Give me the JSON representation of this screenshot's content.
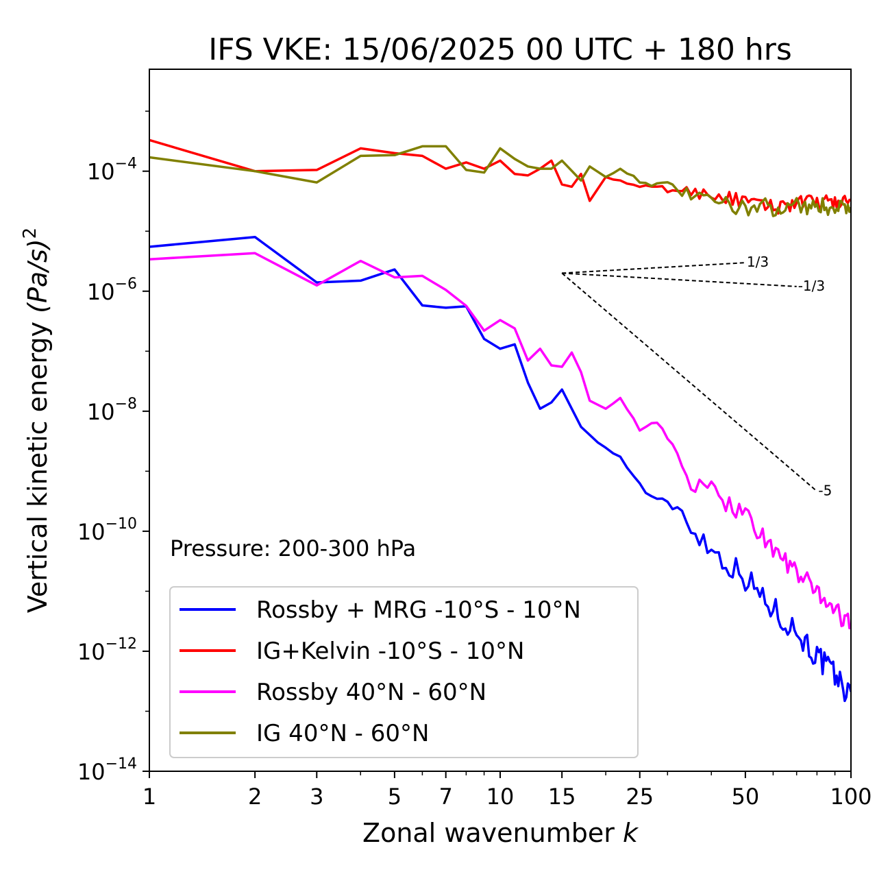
{
  "chart_data": {
    "type": "line",
    "title": "IFS VKE: 15/06/2025 00 UTC + 180 hrs",
    "xlabel": "Zonal wavenumber",
    "xlabel_var": "k",
    "ylabel": "Vertical kinetic energy",
    "ylabel_unit": "(Pa/s)",
    "ylabel_unit_exp": "2",
    "xscale": "log",
    "yscale": "log",
    "xlim": [
      1,
      100
    ],
    "ylim": [
      1e-14,
      0.005
    ],
    "xticks": [
      1,
      2,
      3,
      5,
      7,
      10,
      15,
      25,
      50,
      100
    ],
    "yticks": [
      {
        "value": 1e-14,
        "base": "10",
        "exp": "−14"
      },
      {
        "value": 1e-12,
        "base": "10",
        "exp": "−12"
      },
      {
        "value": 1e-10,
        "base": "10",
        "exp": "−10"
      },
      {
        "value": 1e-08,
        "base": "10",
        "exp": "−8"
      },
      {
        "value": 1e-06,
        "base": "10",
        "exp": "−6"
      },
      {
        "value": 0.0001,
        "base": "10",
        "exp": "−4"
      }
    ],
    "annotation": "Pressure: 200-300 hPa",
    "legend_position": "lower-left",
    "series": [
      {
        "name": "Rossby + MRG -10°S - 10°N",
        "color": "#0000ff",
        "anchors": [
          [
            1,
            5.5e-06
          ],
          [
            2,
            8e-06
          ],
          [
            3,
            1.4e-06
          ],
          [
            4,
            1.5e-06
          ],
          [
            5,
            2.3e-06
          ],
          [
            6,
            5.8e-07
          ],
          [
            7,
            5.3e-07
          ],
          [
            8,
            5.6e-07
          ],
          [
            9,
            1.6e-07
          ],
          [
            10,
            1.1e-07
          ],
          [
            11,
            1.3e-07
          ],
          [
            12,
            3e-08
          ],
          [
            13,
            1.1e-08
          ],
          [
            14,
            1.4e-08
          ],
          [
            15,
            2.3e-08
          ],
          [
            17,
            5.5e-09
          ],
          [
            19,
            3e-09
          ],
          [
            22,
            1.7e-09
          ],
          [
            25,
            6e-10
          ],
          [
            28,
            3e-10
          ],
          [
            32,
            2.7e-10
          ],
          [
            35,
            1.2e-10
          ],
          [
            40,
            5e-11
          ],
          [
            50,
            1.7e-11
          ],
          [
            60,
            5e-12
          ],
          [
            70,
            2.2e-12
          ],
          [
            80,
            8e-13
          ],
          [
            90,
            4e-13
          ],
          [
            100,
            1.7e-13
          ]
        ],
        "noise": 0.45
      },
      {
        "name": "IG+Kelvin -10°S - 10°N",
        "color": "#ff0000",
        "anchors": [
          [
            1,
            0.00033
          ],
          [
            2,
            0.0001
          ],
          [
            3,
            0.000105
          ],
          [
            4,
            0.00024
          ],
          [
            5,
            0.0002
          ],
          [
            6,
            0.00018
          ],
          [
            7,
            0.00011
          ],
          [
            8,
            0.00014
          ],
          [
            9,
            0.00011
          ],
          [
            10,
            0.00015
          ],
          [
            11,
            9e-05
          ],
          [
            12,
            8.5e-05
          ],
          [
            13,
            0.00011
          ],
          [
            14,
            0.00015
          ],
          [
            15,
            6e-05
          ],
          [
            16,
            5.5e-05
          ],
          [
            17,
            9e-05
          ],
          [
            18,
            3.2e-05
          ],
          [
            20,
            8e-05
          ],
          [
            25,
            5.5e-05
          ],
          [
            30,
            5e-05
          ],
          [
            40,
            4.2e-05
          ],
          [
            50,
            3e-05
          ],
          [
            60,
            2.5e-05
          ],
          [
            70,
            3e-05
          ],
          [
            80,
            3e-05
          ],
          [
            100,
            3.1e-05
          ]
        ],
        "noise": 0.25
      },
      {
        "name": "Rossby 40°N - 60°N",
        "color": "#ff00ff",
        "anchors": [
          [
            1,
            3.4e-06
          ],
          [
            2,
            4.3e-06
          ],
          [
            3,
            1.25e-06
          ],
          [
            4,
            3.2e-06
          ],
          [
            5,
            1.7e-06
          ],
          [
            6,
            1.8e-06
          ],
          [
            7,
            1.05e-06
          ],
          [
            8,
            5.7e-07
          ],
          [
            9,
            2.2e-07
          ],
          [
            10,
            3.3e-07
          ],
          [
            11,
            2.4e-07
          ],
          [
            12,
            7e-08
          ],
          [
            13,
            1.1e-07
          ],
          [
            14,
            5.8e-08
          ],
          [
            15,
            5.5e-08
          ],
          [
            16,
            9.5e-08
          ],
          [
            17,
            4.5e-08
          ],
          [
            18,
            1.5e-08
          ],
          [
            20,
            1.1e-08
          ],
          [
            22,
            1.7e-08
          ],
          [
            25,
            5e-09
          ],
          [
            28,
            6e-09
          ],
          [
            32,
            2e-09
          ],
          [
            35,
            6e-10
          ],
          [
            40,
            4.5e-10
          ],
          [
            50,
            2e-10
          ],
          [
            60,
            5e-11
          ],
          [
            70,
            2e-11
          ],
          [
            80,
            1e-11
          ],
          [
            90,
            5e-12
          ],
          [
            100,
            2.5e-12
          ]
        ],
        "noise": 0.35
      },
      {
        "name": "IG 40°N - 60°N",
        "color": "#808000",
        "anchors": [
          [
            1,
            0.00017
          ],
          [
            2,
            0.0001
          ],
          [
            3,
            6.5e-05
          ],
          [
            4,
            0.00018
          ],
          [
            5,
            0.000185
          ],
          [
            6,
            0.00026
          ],
          [
            7,
            0.00026
          ],
          [
            8,
            0.000105
          ],
          [
            9,
            9.5e-05
          ],
          [
            10,
            0.00024
          ],
          [
            11,
            0.00016
          ],
          [
            12,
            0.00012
          ],
          [
            13,
            0.00011
          ],
          [
            14,
            0.00011
          ],
          [
            15,
            0.00015
          ],
          [
            17,
            7e-05
          ],
          [
            18,
            0.00012
          ],
          [
            20,
            8e-05
          ],
          [
            22,
            0.00011
          ],
          [
            25,
            7e-05
          ],
          [
            30,
            5.5e-05
          ],
          [
            40,
            3e-05
          ],
          [
            50,
            2.5e-05
          ],
          [
            60,
            2.5e-05
          ],
          [
            70,
            2.8e-05
          ],
          [
            80,
            2.5e-05
          ],
          [
            100,
            2.7e-05
          ]
        ],
        "noise": 0.3
      }
    ],
    "reference_slopes": [
      {
        "label": "1/3",
        "slope": 0.3333,
        "k0": 15,
        "k1": 50,
        "y0": 2e-06
      },
      {
        "label": "-1/3",
        "slope": -0.3333,
        "k0": 15,
        "k1": 70,
        "y0": 2e-06
      },
      {
        "label": "-5",
        "slope": -5,
        "k0": 15,
        "k1": 80,
        "y0": 2e-06
      }
    ]
  }
}
